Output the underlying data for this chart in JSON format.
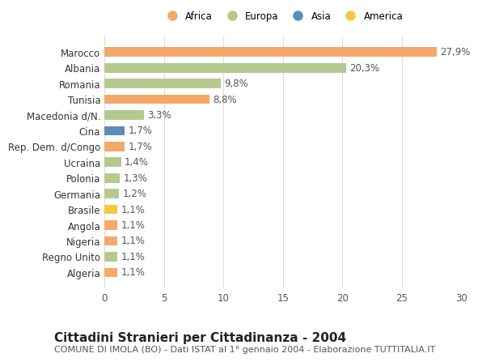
{
  "countries": [
    "Algeria",
    "Regno Unito",
    "Nigeria",
    "Angola",
    "Brasile",
    "Germania",
    "Polonia",
    "Ucraina",
    "Rep. Dem. d/Congo",
    "Cina",
    "Macedonia d/N.",
    "Tunisia",
    "Romania",
    "Albania",
    "Marocco"
  ],
  "values": [
    1.1,
    1.1,
    1.1,
    1.1,
    1.1,
    1.2,
    1.3,
    1.4,
    1.7,
    1.7,
    3.3,
    8.8,
    9.8,
    20.3,
    27.9
  ],
  "labels": [
    "1,1%",
    "1,1%",
    "1,1%",
    "1,1%",
    "1,1%",
    "1,2%",
    "1,3%",
    "1,4%",
    "1,7%",
    "1,7%",
    "3,3%",
    "8,8%",
    "9,8%",
    "20,3%",
    "27,9%"
  ],
  "continent": [
    "Africa",
    "Europa",
    "Africa",
    "Africa",
    "America",
    "Europa",
    "Europa",
    "Europa",
    "Africa",
    "Asia",
    "Europa",
    "Africa",
    "Europa",
    "Europa",
    "Africa"
  ],
  "continent_colors": {
    "Africa": "#F4A96A",
    "Europa": "#B5C98E",
    "Asia": "#5B8DB8",
    "America": "#F5C842"
  },
  "legend_order": [
    "Africa",
    "Europa",
    "Asia",
    "America"
  ],
  "legend_colors": [
    "#F4A96A",
    "#B5C98E",
    "#5B8DB8",
    "#F5C842"
  ],
  "title": "Cittadini Stranieri per Cittadinanza - 2004",
  "subtitle": "COMUNE DI IMOLA (BO) - Dati ISTAT al 1° gennaio 2004 - Elaborazione TUTTITALIA.IT",
  "xlim": [
    0,
    30
  ],
  "xticks": [
    0,
    5,
    10,
    15,
    20,
    25,
    30
  ],
  "bar_height": 0.6,
  "background_color": "#ffffff",
  "grid_color": "#dddddd",
  "label_fontsize": 8.5,
  "tick_fontsize": 8.5,
  "title_fontsize": 11,
  "subtitle_fontsize": 8
}
